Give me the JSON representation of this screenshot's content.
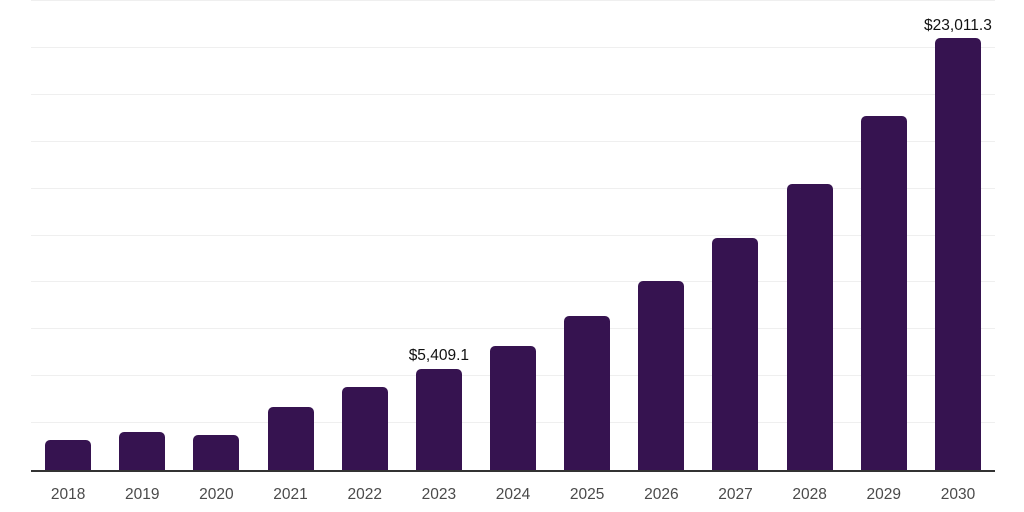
{
  "chart_data": {
    "type": "bar",
    "title": "",
    "xlabel": "",
    "ylabel": "",
    "categories": [
      "2018",
      "2019",
      "2020",
      "2021",
      "2022",
      "2023",
      "2024",
      "2025",
      "2026",
      "2027",
      "2028",
      "2029",
      "2030"
    ],
    "values": [
      1580,
      2040,
      1850,
      3340,
      4410,
      5409.1,
      6630,
      8190,
      10090,
      12380,
      15230,
      18870,
      23011.3
    ],
    "point_labels": [
      "",
      "",
      "",
      "",
      "",
      "$5,409.1",
      "",
      "",
      "",
      "",
      "",
      "",
      "$23,011.3"
    ],
    "ylim": [
      0,
      25000
    ],
    "grid_step": 2500,
    "grid": true,
    "legend": false,
    "colors": {
      "bar": "#361350",
      "axis_line": "#333333",
      "gridline": "#efefef",
      "tick_label": "#4a4a4a",
      "data_label": "#111111",
      "background": "#ffffff"
    }
  }
}
